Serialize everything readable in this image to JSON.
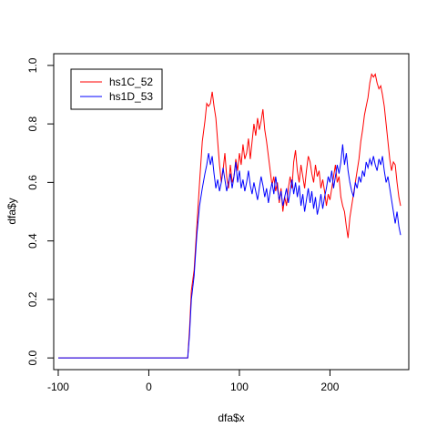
{
  "chart_data": {
    "type": "line",
    "title": "",
    "xlabel": "dfa$x",
    "ylabel": "dfa$y",
    "xlim": [
      -105,
      287
    ],
    "ylim": [
      -0.04,
      1.04
    ],
    "x_ticks": [
      -100,
      0,
      100,
      200
    ],
    "x_tick_labels": [
      "-100",
      "0",
      "100",
      "200"
    ],
    "y_ticks": [
      0.0,
      0.2,
      0.4,
      0.6,
      0.8,
      1.0
    ],
    "y_tick_labels": [
      "0.0",
      "0.2",
      "0.4",
      "0.6",
      "0.8",
      "1.0"
    ],
    "grid": false,
    "legend_position": "top-left",
    "series": [
      {
        "name": "hs1C_52",
        "color": "#ff0000",
        "points": [
          [
            -100,
            0.0
          ],
          [
            43,
            0.0
          ],
          [
            45,
            0.1
          ],
          [
            47,
            0.23
          ],
          [
            50,
            0.3
          ],
          [
            53,
            0.45
          ],
          [
            56,
            0.6
          ],
          [
            59,
            0.74
          ],
          [
            62,
            0.81
          ],
          [
            64,
            0.87
          ],
          [
            66,
            0.86
          ],
          [
            68,
            0.87
          ],
          [
            70,
            0.91
          ],
          [
            72,
            0.86
          ],
          [
            74,
            0.82
          ],
          [
            76,
            0.74
          ],
          [
            78,
            0.66
          ],
          [
            80,
            0.6
          ],
          [
            82,
            0.64
          ],
          [
            84,
            0.7
          ],
          [
            86,
            0.62
          ],
          [
            88,
            0.58
          ],
          [
            90,
            0.66
          ],
          [
            92,
            0.6
          ],
          [
            94,
            0.62
          ],
          [
            96,
            0.68
          ],
          [
            98,
            0.64
          ],
          [
            100,
            0.7
          ],
          [
            102,
            0.66
          ],
          [
            104,
            0.73
          ],
          [
            106,
            0.68
          ],
          [
            108,
            0.7
          ],
          [
            110,
            0.75
          ],
          [
            112,
            0.68
          ],
          [
            114,
            0.74
          ],
          [
            116,
            0.8
          ],
          [
            118,
            0.76
          ],
          [
            120,
            0.82
          ],
          [
            122,
            0.78
          ],
          [
            124,
            0.81
          ],
          [
            126,
            0.85
          ],
          [
            128,
            0.78
          ],
          [
            130,
            0.74
          ],
          [
            132,
            0.69
          ],
          [
            134,
            0.64
          ],
          [
            136,
            0.59
          ],
          [
            138,
            0.62
          ],
          [
            140,
            0.57
          ],
          [
            142,
            0.6
          ],
          [
            144,
            0.53
          ],
          [
            146,
            0.58
          ],
          [
            148,
            0.5
          ],
          [
            150,
            0.55
          ],
          [
            152,
            0.52
          ],
          [
            154,
            0.58
          ],
          [
            156,
            0.62
          ],
          [
            158,
            0.58
          ],
          [
            160,
            0.67
          ],
          [
            162,
            0.71
          ],
          [
            164,
            0.64
          ],
          [
            166,
            0.6
          ],
          [
            168,
            0.66
          ],
          [
            170,
            0.62
          ],
          [
            172,
            0.58
          ],
          [
            174,
            0.64
          ],
          [
            176,
            0.69
          ],
          [
            178,
            0.67
          ],
          [
            180,
            0.63
          ],
          [
            182,
            0.6
          ],
          [
            184,
            0.66
          ],
          [
            186,
            0.62
          ],
          [
            188,
            0.64
          ],
          [
            190,
            0.58
          ],
          [
            192,
            0.61
          ],
          [
            194,
            0.57
          ],
          [
            196,
            0.52
          ],
          [
            198,
            0.56
          ],
          [
            200,
            0.54
          ],
          [
            202,
            0.58
          ],
          [
            204,
            0.62
          ],
          [
            206,
            0.66
          ],
          [
            208,
            0.6
          ],
          [
            210,
            0.62
          ],
          [
            212,
            0.55
          ],
          [
            214,
            0.52
          ],
          [
            216,
            0.5
          ],
          [
            218,
            0.45
          ],
          [
            220,
            0.41
          ],
          [
            222,
            0.48
          ],
          [
            224,
            0.52
          ],
          [
            226,
            0.56
          ],
          [
            228,
            0.6
          ],
          [
            230,
            0.64
          ],
          [
            232,
            0.68
          ],
          [
            234,
            0.74
          ],
          [
            236,
            0.78
          ],
          [
            238,
            0.83
          ],
          [
            240,
            0.86
          ],
          [
            242,
            0.89
          ],
          [
            244,
            0.94
          ],
          [
            246,
            0.97
          ],
          [
            248,
            0.96
          ],
          [
            250,
            0.97
          ],
          [
            252,
            0.94
          ],
          [
            254,
            0.92
          ],
          [
            256,
            0.93
          ],
          [
            258,
            0.9
          ],
          [
            260,
            0.86
          ],
          [
            262,
            0.8
          ],
          [
            264,
            0.74
          ],
          [
            266,
            0.68
          ],
          [
            268,
            0.64
          ],
          [
            270,
            0.67
          ],
          [
            272,
            0.66
          ],
          [
            274,
            0.6
          ],
          [
            276,
            0.55
          ],
          [
            278,
            0.52
          ]
        ]
      },
      {
        "name": "hs1D_53",
        "color": "#0000ff",
        "points": [
          [
            -100,
            0.0
          ],
          [
            43,
            0.0
          ],
          [
            45,
            0.08
          ],
          [
            47,
            0.2
          ],
          [
            50,
            0.28
          ],
          [
            53,
            0.42
          ],
          [
            56,
            0.52
          ],
          [
            59,
            0.58
          ],
          [
            62,
            0.63
          ],
          [
            64,
            0.66
          ],
          [
            66,
            0.7
          ],
          [
            68,
            0.66
          ],
          [
            70,
            0.69
          ],
          [
            72,
            0.63
          ],
          [
            74,
            0.58
          ],
          [
            76,
            0.61
          ],
          [
            78,
            0.57
          ],
          [
            80,
            0.6
          ],
          [
            82,
            0.65
          ],
          [
            84,
            0.61
          ],
          [
            86,
            0.57
          ],
          [
            88,
            0.6
          ],
          [
            90,
            0.63
          ],
          [
            92,
            0.58
          ],
          [
            94,
            0.62
          ],
          [
            96,
            0.67
          ],
          [
            98,
            0.6
          ],
          [
            100,
            0.64
          ],
          [
            102,
            0.58
          ],
          [
            104,
            0.61
          ],
          [
            106,
            0.57
          ],
          [
            108,
            0.6
          ],
          [
            110,
            0.64
          ],
          [
            112,
            0.59
          ],
          [
            114,
            0.56
          ],
          [
            116,
            0.6
          ],
          [
            118,
            0.57
          ],
          [
            120,
            0.54
          ],
          [
            122,
            0.58
          ],
          [
            124,
            0.62
          ],
          [
            126,
            0.59
          ],
          [
            128,
            0.55
          ],
          [
            130,
            0.58
          ],
          [
            132,
            0.53
          ],
          [
            134,
            0.57
          ],
          [
            136,
            0.6
          ],
          [
            138,
            0.56
          ],
          [
            140,
            0.62
          ],
          [
            142,
            0.58
          ],
          [
            144,
            0.54
          ],
          [
            146,
            0.57
          ],
          [
            148,
            0.52
          ],
          [
            150,
            0.55
          ],
          [
            152,
            0.58
          ],
          [
            154,
            0.53
          ],
          [
            156,
            0.57
          ],
          [
            158,
            0.61
          ],
          [
            160,
            0.56
          ],
          [
            162,
            0.6
          ],
          [
            164,
            0.55
          ],
          [
            166,
            0.59
          ],
          [
            168,
            0.52
          ],
          [
            170,
            0.56
          ],
          [
            172,
            0.5
          ],
          [
            174,
            0.54
          ],
          [
            176,
            0.58
          ],
          [
            178,
            0.53
          ],
          [
            180,
            0.57
          ],
          [
            182,
            0.51
          ],
          [
            184,
            0.55
          ],
          [
            186,
            0.49
          ],
          [
            188,
            0.52
          ],
          [
            190,
            0.56
          ],
          [
            192,
            0.51
          ],
          [
            194,
            0.55
          ],
          [
            196,
            0.58
          ],
          [
            198,
            0.62
          ],
          [
            200,
            0.6
          ],
          [
            202,
            0.64
          ],
          [
            204,
            0.58
          ],
          [
            206,
            0.62
          ],
          [
            208,
            0.66
          ],
          [
            210,
            0.63
          ],
          [
            212,
            0.67
          ],
          [
            214,
            0.73
          ],
          [
            216,
            0.66
          ],
          [
            218,
            0.7
          ],
          [
            220,
            0.64
          ],
          [
            222,
            0.6
          ],
          [
            224,
            0.57
          ],
          [
            226,
            0.55
          ],
          [
            228,
            0.6
          ],
          [
            230,
            0.58
          ],
          [
            232,
            0.62
          ],
          [
            234,
            0.6
          ],
          [
            236,
            0.64
          ],
          [
            238,
            0.62
          ],
          [
            240,
            0.67
          ],
          [
            242,
            0.65
          ],
          [
            244,
            0.68
          ],
          [
            246,
            0.66
          ],
          [
            248,
            0.69
          ],
          [
            250,
            0.66
          ],
          [
            252,
            0.64
          ],
          [
            254,
            0.68
          ],
          [
            256,
            0.66
          ],
          [
            258,
            0.69
          ],
          [
            260,
            0.64
          ],
          [
            262,
            0.6
          ],
          [
            264,
            0.62
          ],
          [
            266,
            0.58
          ],
          [
            268,
            0.54
          ],
          [
            270,
            0.5
          ],
          [
            272,
            0.46
          ],
          [
            274,
            0.5
          ],
          [
            276,
            0.45
          ],
          [
            278,
            0.42
          ]
        ]
      }
    ]
  }
}
